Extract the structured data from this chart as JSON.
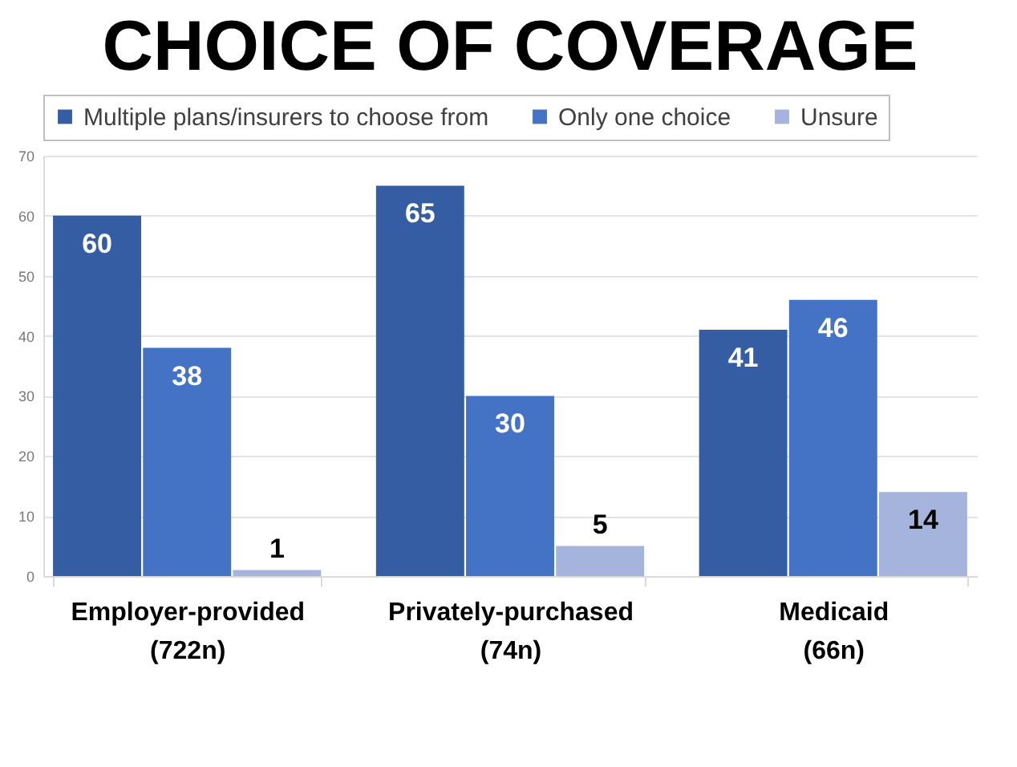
{
  "chart_data": {
    "type": "bar",
    "title": "CHOICE OF COVERAGE",
    "categories": [
      "Employer-provided\n(722n)",
      "Privately-purchased\n(74n)",
      "Medicaid\n(66n)"
    ],
    "series": [
      {
        "name": "Multiple plans/insurers to choose from",
        "color": "#345da3",
        "values": [
          60,
          65,
          41
        ]
      },
      {
        "name": "Only one choice",
        "color": "#4472c4",
        "values": [
          38,
          30,
          46
        ]
      },
      {
        "name": "Unsure",
        "color": "#a5b4dc",
        "values": [
          1,
          5,
          14
        ]
      }
    ],
    "ylim": [
      0,
      70
    ],
    "yticks": [
      0,
      10,
      20,
      30,
      40,
      50,
      60,
      70
    ],
    "grid": "y",
    "legend": "top",
    "data_labels": true
  }
}
